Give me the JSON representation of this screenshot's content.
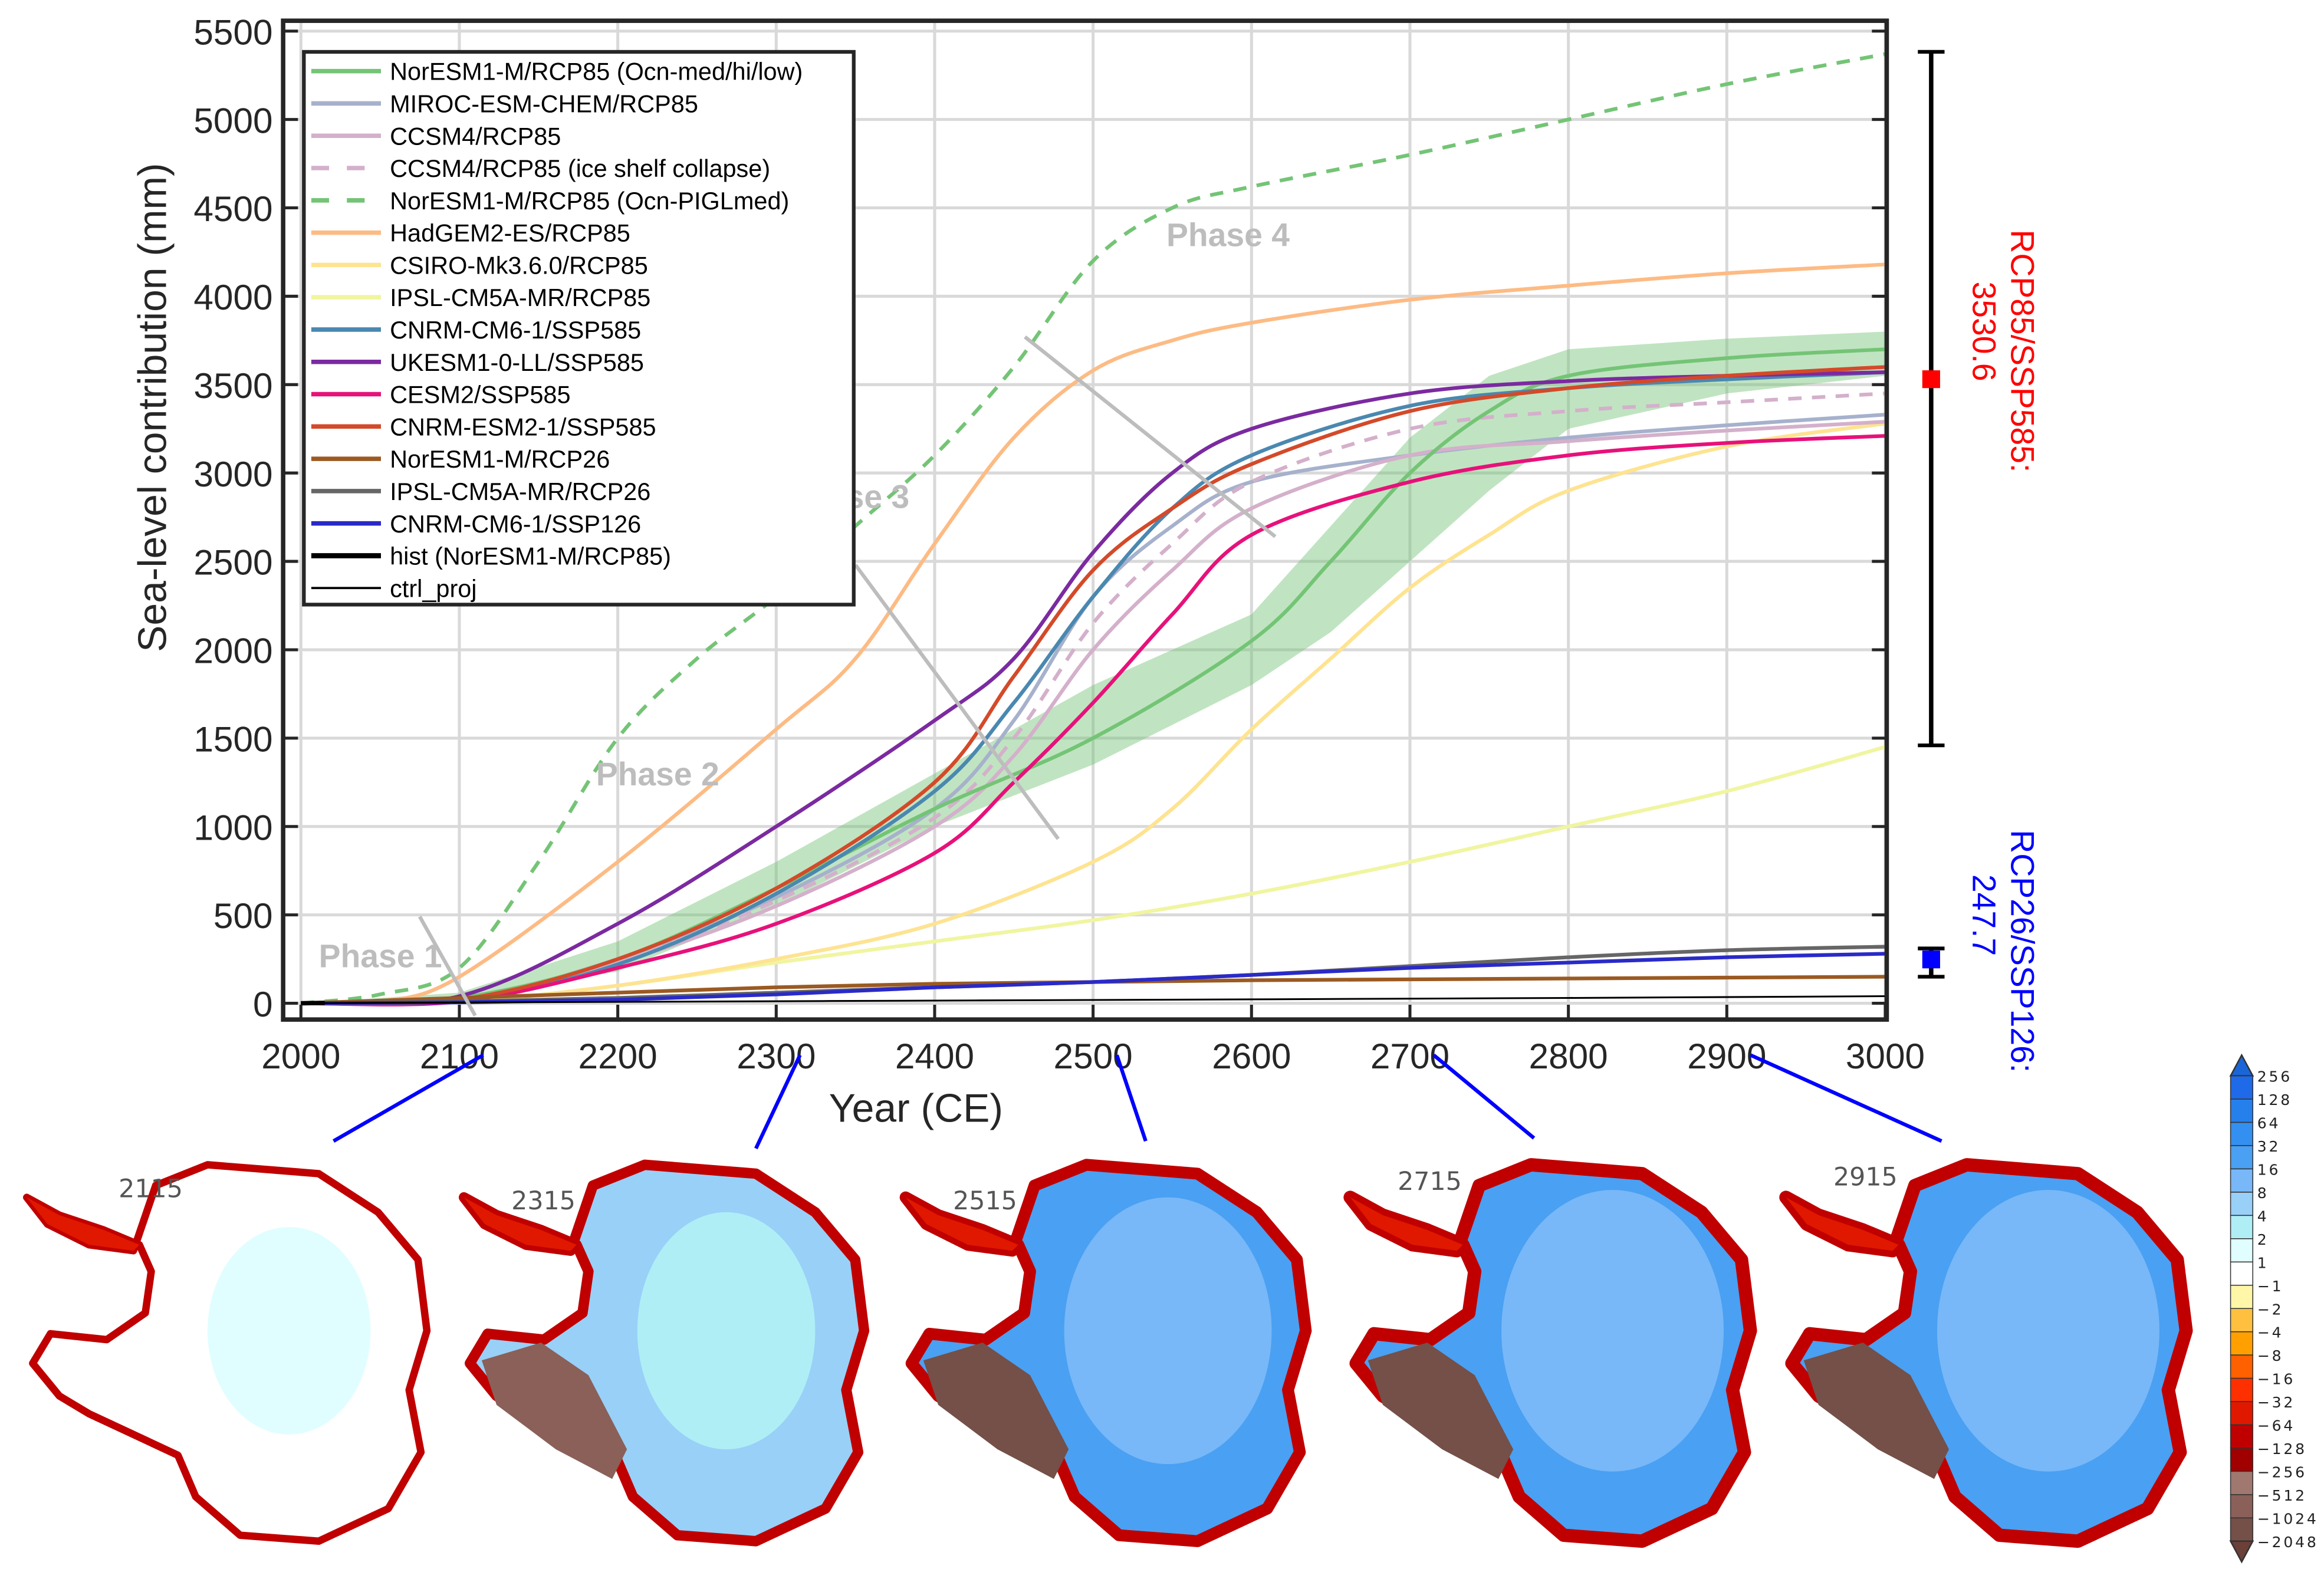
{
  "chart_data": {
    "type": "line",
    "xlabel": "Year (CE)",
    "ylabel": "Sea-level contribution (mm)",
    "xlim": [
      2000,
      3000
    ],
    "ylim": [
      -80,
      5500
    ],
    "xticks": [
      "2000",
      "2100",
      "2200",
      "2300",
      "2400",
      "2500",
      "2600",
      "2700",
      "2800",
      "2900",
      "3000"
    ],
    "yticks": [
      "0",
      "500",
      "1000",
      "1500",
      "2000",
      "2500",
      "3000",
      "3500",
      "4000",
      "4500",
      "5000",
      "5500"
    ],
    "grid": true,
    "legend_position": "top-left",
    "series": [
      {
        "name": "NorESM1-M/RCP85 (Ocn-med/hi/low)",
        "color": "#74c476",
        "dash": false,
        "width": 2.5,
        "x": [
          2000,
          2100,
          2200,
          2300,
          2400,
          2500,
          2600,
          2650,
          2700,
          2750,
          2800,
          2900,
          3000
        ],
        "y": [
          0,
          30,
          250,
          650,
          1100,
          1500,
          2050,
          2500,
          3000,
          3350,
          3550,
          3650,
          3700
        ],
        "band_low": [
          0,
          20,
          180,
          550,
          1000,
          1350,
          1800,
          2100,
          2500,
          2900,
          3250,
          3450,
          3550
        ],
        "band_high": [
          0,
          60,
          350,
          800,
          1300,
          1800,
          2200,
          2700,
          3200,
          3550,
          3700,
          3760,
          3800
        ]
      },
      {
        "name": "MIROC-ESM-CHEM/RCP85",
        "color": "#a6b1cc",
        "dash": false,
        "width": 2.5,
        "x": [
          2000,
          2100,
          2200,
          2300,
          2400,
          2450,
          2500,
          2550,
          2600,
          2700,
          2800,
          2900,
          3000
        ],
        "y": [
          0,
          20,
          250,
          600,
          1100,
          1600,
          2300,
          2700,
          2950,
          3100,
          3200,
          3270,
          3330
        ]
      },
      {
        "name": "CCSM4/RCP85",
        "color": "#d4b0cb",
        "dash": false,
        "width": 2.5,
        "x": [
          2000,
          2100,
          2200,
          2300,
          2400,
          2450,
          2500,
          2550,
          2600,
          2700,
          2800,
          2900,
          3000
        ],
        "y": [
          0,
          20,
          230,
          550,
          1000,
          1400,
          2000,
          2450,
          2800,
          3100,
          3180,
          3240,
          3290
        ]
      },
      {
        "name": "CCSM4/RCP85 (ice shelf collapse)",
        "color": "#d4b0cb",
        "dash": true,
        "width": 2.5,
        "x": [
          2000,
          2100,
          2200,
          2300,
          2400,
          2450,
          2500,
          2550,
          2600,
          2700,
          2800,
          2900,
          3000
        ],
        "y": [
          0,
          20,
          240,
          580,
          1050,
          1500,
          2150,
          2600,
          2950,
          3250,
          3350,
          3400,
          3450
        ]
      },
      {
        "name": "NorESM1-M/RCP85 (Ocn-PIGLmed)",
        "color": "#74c476",
        "dash": true,
        "width": 2.5,
        "x": [
          2000,
          2050,
          2100,
          2150,
          2200,
          2250,
          2300,
          2350,
          2400,
          2450,
          2500,
          2550,
          2600,
          2700,
          2800,
          2900,
          3000
        ],
        "y": [
          0,
          50,
          200,
          800,
          1500,
          1950,
          2300,
          2700,
          3100,
          3600,
          4200,
          4500,
          4620,
          4800,
          5000,
          5200,
          5370
        ]
      },
      {
        "name": "HadGEM2-ES/RCP85",
        "color": "#fdbb84",
        "dash": false,
        "width": 2.5,
        "x": [
          2000,
          2050,
          2100,
          2200,
          2300,
          2350,
          2400,
          2450,
          2500,
          2550,
          2600,
          2700,
          2800,
          2900,
          3000
        ],
        "y": [
          0,
          10,
          150,
          800,
          1550,
          1950,
          2600,
          3200,
          3580,
          3750,
          3850,
          3980,
          4060,
          4130,
          4180
        ]
      },
      {
        "name": "CSIRO-Mk3.6.0/RCP85",
        "color": "#fee391",
        "dash": false,
        "width": 2.5,
        "x": [
          2000,
          2100,
          2200,
          2300,
          2400,
          2500,
          2550,
          2600,
          2650,
          2700,
          2750,
          2800,
          2900,
          3000
        ],
        "y": [
          0,
          10,
          100,
          250,
          450,
          800,
          1100,
          1550,
          1950,
          2350,
          2650,
          2900,
          3150,
          3280
        ]
      },
      {
        "name": "IPSL-CM5A-MR/RCP85",
        "color": "#f0f5a0",
        "dash": false,
        "width": 2.5,
        "x": [
          2000,
          2100,
          2200,
          2300,
          2400,
          2500,
          2600,
          2700,
          2800,
          2900,
          3000
        ],
        "y": [
          0,
          10,
          100,
          230,
          350,
          470,
          620,
          800,
          1000,
          1200,
          1450
        ]
      },
      {
        "name": "CNRM-CM6-1/SSP585",
        "color": "#4a88b0",
        "dash": false,
        "width": 2.5,
        "x": [
          2000,
          2100,
          2200,
          2300,
          2400,
          2450,
          2500,
          2550,
          2600,
          2700,
          2800,
          2900,
          3000
        ],
        "y": [
          0,
          20,
          220,
          620,
          1200,
          1700,
          2300,
          2800,
          3100,
          3380,
          3480,
          3530,
          3570
        ]
      },
      {
        "name": "UKESM1-0-LL/SSP585",
        "color": "#7b2aa0",
        "dash": false,
        "width": 2.5,
        "x": [
          2000,
          2100,
          2200,
          2300,
          2400,
          2450,
          2500,
          2550,
          2600,
          2700,
          2800,
          2900,
          3000
        ],
        "y": [
          0,
          40,
          450,
          1000,
          1600,
          1950,
          2550,
          3000,
          3250,
          3450,
          3520,
          3550,
          3570
        ]
      },
      {
        "name": "CESM2/SSP585",
        "color": "#e7117a",
        "dash": false,
        "width": 2.5,
        "x": [
          2000,
          2100,
          2200,
          2300,
          2400,
          2450,
          2500,
          2550,
          2600,
          2700,
          2800,
          2900,
          3000
        ],
        "y": [
          0,
          10,
          200,
          450,
          850,
          1250,
          1700,
          2200,
          2650,
          2950,
          3100,
          3170,
          3210
        ]
      },
      {
        "name": "CNRM-ESM2-1/SSP585",
        "color": "#d34a2a",
        "dash": false,
        "width": 2.5,
        "x": [
          2000,
          2100,
          2200,
          2300,
          2400,
          2450,
          2500,
          2550,
          2600,
          2700,
          2800,
          2900,
          3000
        ],
        "y": [
          0,
          20,
          250,
          650,
          1250,
          1850,
          2450,
          2800,
          3050,
          3350,
          3480,
          3550,
          3600
        ]
      },
      {
        "name": "NorESM1-M/RCP26",
        "color": "#9a5a22",
        "dash": false,
        "width": 2.5,
        "x": [
          2000,
          2100,
          2200,
          2300,
          2400,
          2500,
          2600,
          2700,
          2800,
          2900,
          3000
        ],
        "y": [
          0,
          30,
          60,
          90,
          110,
          120,
          130,
          135,
          140,
          145,
          150
        ]
      },
      {
        "name": "IPSL-CM5A-MR/RCP26",
        "color": "#666666",
        "dash": false,
        "width": 2.5,
        "x": [
          2000,
          2100,
          2200,
          2300,
          2400,
          2500,
          2600,
          2700,
          2800,
          2900,
          3000
        ],
        "y": [
          0,
          10,
          30,
          60,
          90,
          120,
          160,
          210,
          260,
          300,
          320
        ]
      },
      {
        "name": "CNRM-CM6-1/SSP126",
        "color": "#2a2ac8",
        "dash": false,
        "width": 2.5,
        "x": [
          2000,
          2100,
          2200,
          2300,
          2400,
          2500,
          2600,
          2700,
          2800,
          2900,
          3000
        ],
        "y": [
          0,
          5,
          20,
          50,
          90,
          120,
          160,
          200,
          230,
          260,
          280
        ]
      },
      {
        "name": "hist (NorESM1-M/RCP85)",
        "color": "#000000",
        "dash": false,
        "width": 3,
        "x": [
          2000,
          2015
        ],
        "y": [
          0,
          2
        ]
      },
      {
        "name": "ctrl_proj",
        "color": "#000000",
        "dash": false,
        "width": 1.2,
        "x": [
          2000,
          2200,
          2400,
          2600,
          2800,
          3000
        ],
        "y": [
          0,
          8,
          15,
          22,
          30,
          40
        ]
      }
    ],
    "annotations": [
      "Phase 1",
      "Phase 2",
      "Phase 3",
      "Phase 4"
    ],
    "ranges": [
      {
        "label": "RCP85/SSP585:",
        "value": "3530.6",
        "mean": 3530.6,
        "min": 1459,
        "max": 5383,
        "color": "#ff0000"
      },
      {
        "label": "RCP26/SSP126:",
        "value": "247.7",
        "mean": 247.7,
        "min": 150,
        "max": 310,
        "color": "#0000ff"
      }
    ]
  },
  "maps": {
    "years": [
      "2115",
      "2315",
      "2515",
      "2715",
      "2915"
    ],
    "colorbar": {
      "labels": [
        "256",
        "128",
        "64",
        "32",
        "16",
        "8",
        "4",
        "2",
        "1",
        "−1",
        "−2",
        "−4",
        "−8",
        "−16",
        "−32",
        "−64",
        "−128",
        "−256",
        "−512",
        "−1024",
        "−2048"
      ],
      "colors": [
        "#1e6ae8",
        "#2680ec",
        "#3490f0",
        "#4aa0f2",
        "#78b8f8",
        "#98d0f8",
        "#b0eef6",
        "#e0feff",
        "#ffffff",
        "#fff6a8",
        "#ffc040",
        "#ffa000",
        "#ff6000",
        "#ff3000",
        "#e01800",
        "#c00000",
        "#a00000",
        "#a07870",
        "#8a6058",
        "#745048"
      ],
      "over_color": "#1a66d8",
      "under_color": "#6a4038"
    }
  }
}
